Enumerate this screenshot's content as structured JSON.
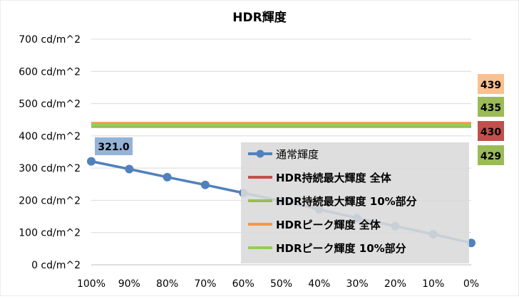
{
  "chart_data": {
    "type": "line",
    "title": "HDR輝度",
    "categories": [
      "100%",
      "90%",
      "80%",
      "70%",
      "60%",
      "50%",
      "40%",
      "30%",
      "20%",
      "10%",
      "0%"
    ],
    "y_ticks": [
      "0 cd/m^2",
      "100 cd/m^2",
      "200 cd/m^2",
      "300 cd/m^2",
      "400 cd/m^2",
      "500 cd/m^2",
      "600 cd/m^2",
      "700 cd/m^2"
    ],
    "ylim": [
      0,
      700
    ],
    "grid": "horizontal",
    "legend_position": "center-right",
    "series": [
      {
        "name": "通常輝度",
        "color": "#4F81BD",
        "marker": "circle",
        "values": [
          321.0,
          297,
          272,
          248,
          223,
          198,
          172,
          145,
          120,
          95,
          68
        ],
        "label_first": "321.0"
      },
      {
        "name": "HDR持続最大輝度 全体",
        "color": "#C0504D",
        "value": 430,
        "label": "430"
      },
      {
        "name": "HDR持続最大輝度 10%部分",
        "color": "#9BBB59",
        "value": 429,
        "label": "429"
      },
      {
        "name": "HDRピーク輝度 全体",
        "color": "#F79646",
        "value": 439,
        "label": "439"
      },
      {
        "name": "HDRピーク輝度 10%部分",
        "color": "#92D050",
        "value": 435,
        "label": "435"
      }
    ]
  }
}
